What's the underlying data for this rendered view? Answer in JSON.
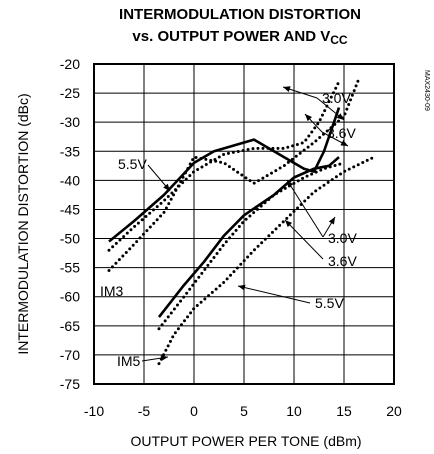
{
  "chart_data": {
    "type": "line",
    "title_line1": "INTERMODULATION DISTORTION",
    "title_line2_prefix": "vs. OUTPUT POWER AND V",
    "title_line2_sub": "CC",
    "xlabel": "OUTPUT POWER PER TONE (dBm)",
    "ylabel": "INTERMODULATION DISTORTION (dBc)",
    "part_code": "MAX2430-09",
    "xlim": [
      -10,
      20
    ],
    "ylim": [
      -75,
      -20
    ],
    "xticks": [
      "-10",
      "-5",
      "0",
      "5",
      "10",
      "15",
      "20"
    ],
    "yticks": [
      "-20",
      "-25",
      "-30",
      "-35",
      "-40",
      "-45",
      "-50",
      "-55",
      "-60",
      "-65",
      "-70",
      "-75"
    ],
    "grid": true,
    "annotations": [
      {
        "text": "3.0V",
        "series": "IM3 3.0V"
      },
      {
        "text": "3.6V",
        "series": "IM3 3.6V"
      },
      {
        "text": "5.5V",
        "series": "IM3 5.5V"
      },
      {
        "text": "3.0V",
        "series": "IM5 3.0V"
      },
      {
        "text": "3.6V",
        "series": "IM5 3.6V"
      },
      {
        "text": "5.5V",
        "series": "IM5 5.5V"
      },
      {
        "text": "IM3",
        "series": "IM3"
      },
      {
        "text": "IM5",
        "series": "IM5"
      }
    ],
    "series": [
      {
        "name": "IM3 3.0V",
        "style": "dotted",
        "x": [
          -8.5,
          -6,
          -3,
          0,
          3,
          6,
          9,
          11,
          12.5,
          14.5
        ],
        "y": [
          -52,
          -48,
          -43.5,
          -38.5,
          -35.5,
          -34.5,
          -34.5,
          -33.5,
          -30,
          -23
        ]
      },
      {
        "name": "IM3 3.6V",
        "style": "solid",
        "x": [
          -8.5,
          -6,
          -3,
          0,
          2,
          6,
          9,
          11,
          12,
          13,
          14.5
        ],
        "y": [
          -50.5,
          -47,
          -42.5,
          -37,
          -35,
          -33,
          -36,
          -38,
          -38.5,
          -35,
          -27.5
        ]
      },
      {
        "name": "IM3 5.5V",
        "style": "dotted",
        "x": [
          -8.5,
          -6,
          -3,
          0,
          3,
          6,
          9,
          12,
          15,
          16.5
        ],
        "y": [
          -55.5,
          -51,
          -45.5,
          -36,
          -37,
          -40.5,
          -37.5,
          -33.5,
          -29,
          -22.5
        ]
      },
      {
        "name": "IM5 3.0V",
        "style": "dotted",
        "x": [
          -3.5,
          -1,
          1,
          3,
          5,
          8,
          11,
          13,
          15
        ],
        "y": [
          -65.5,
          -60,
          -55.5,
          -51,
          -47,
          -42.5,
          -39.5,
          -38,
          -37
        ]
      },
      {
        "name": "IM5 3.6V",
        "style": "solid",
        "x": [
          -3.5,
          -1,
          1,
          3,
          5,
          8,
          10,
          12,
          13.5,
          14.5
        ],
        "y": [
          -63.5,
          -58,
          -54,
          -49.5,
          -46,
          -42.5,
          -39.5,
          -38,
          -37.5,
          -36
        ]
      },
      {
        "name": "IM5 5.5V",
        "style": "dotted",
        "x": [
          -3.5,
          -2,
          0,
          3,
          6,
          9,
          12,
          15,
          18
        ],
        "y": [
          -71.5,
          -66.5,
          -62,
          -57.5,
          -52,
          -47,
          -42,
          -38.5,
          -36
        ]
      }
    ]
  }
}
